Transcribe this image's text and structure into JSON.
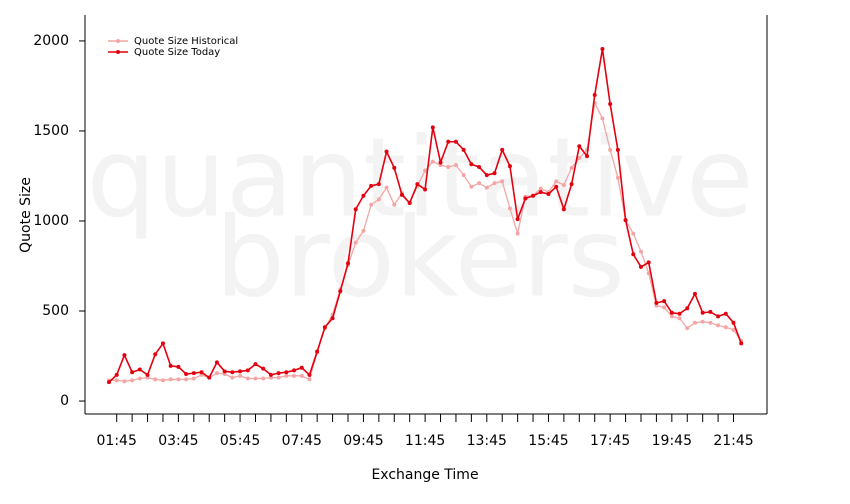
{
  "chart_data": {
    "type": "line",
    "watermark": [
      "quantitative",
      "brokers"
    ],
    "xlabel": "Exchange Time",
    "ylabel": "Quote Size",
    "categories": [
      null,
      "01:45",
      null,
      null,
      null,
      null,
      null,
      null,
      null,
      "03:45",
      null,
      null,
      null,
      null,
      null,
      null,
      null,
      "05:45",
      null,
      null,
      null,
      null,
      null,
      null,
      null,
      "07:45",
      null,
      null,
      null,
      null,
      null,
      null,
      null,
      "09:45",
      null,
      null,
      null,
      null,
      null,
      null,
      null,
      "11:45",
      null,
      null,
      null,
      null,
      null,
      null,
      null,
      "13:45",
      null,
      null,
      null,
      null,
      null,
      null,
      null,
      "15:45",
      null,
      null,
      null,
      null,
      null,
      null,
      null,
      "17:45",
      null,
      null,
      null,
      null,
      null,
      null,
      null,
      "19:45",
      null,
      null,
      null,
      null,
      null,
      null,
      null,
      "21:45",
      null
    ],
    "series": [
      {
        "name": "Quote Size Historical",
        "color": "#f4a6a6",
        "values": [
          115,
          115,
          110,
          115,
          125,
          130,
          120,
          115,
          120,
          120,
          120,
          125,
          145,
          130,
          155,
          150,
          130,
          140,
          125,
          125,
          125,
          130,
          130,
          140,
          140,
          140,
          120,
          270,
          405,
          480,
          620,
          755,
          880,
          945,
          1090,
          1120,
          1185,
          1090,
          1155,
          1100,
          1195,
          1280,
          1330,
          1310,
          1300,
          1310,
          1255,
          1190,
          1210,
          1185,
          1210,
          1220,
          1070,
          930,
          1135,
          1140,
          1180,
          1160,
          1220,
          1200,
          1295,
          1350,
          1395,
          1655,
          1570,
          1395,
          1240,
          1005,
          930,
          830,
          710,
          530,
          520,
          470,
          460,
          405,
          435,
          440,
          435,
          420,
          410,
          395,
          335
        ]
      },
      {
        "name": "Quote Size Today",
        "color": "#e3000f",
        "values": [
          105,
          145,
          255,
          160,
          175,
          145,
          260,
          320,
          195,
          190,
          150,
          155,
          160,
          130,
          215,
          165,
          160,
          165,
          170,
          205,
          180,
          145,
          155,
          160,
          170,
          185,
          145,
          275,
          410,
          460,
          610,
          765,
          1065,
          1140,
          1195,
          1205,
          1385,
          1295,
          1145,
          1100,
          1205,
          1175,
          1520,
          1325,
          1440,
          1440,
          1395,
          1315,
          1300,
          1255,
          1265,
          1395,
          1305,
          1010,
          1125,
          1140,
          1160,
          1150,
          1190,
          1065,
          1205,
          1415,
          1360,
          1700,
          1955,
          1650,
          1395,
          1005,
          815,
          745,
          770,
          545,
          555,
          490,
          485,
          515,
          595,
          490,
          495,
          470,
          485,
          435,
          320
        ]
      }
    ],
    "ylim": [
      -72,
      2144
    ],
    "yticks": [
      0,
      500,
      1000,
      1500,
      2000
    ],
    "legend": "top-left"
  }
}
